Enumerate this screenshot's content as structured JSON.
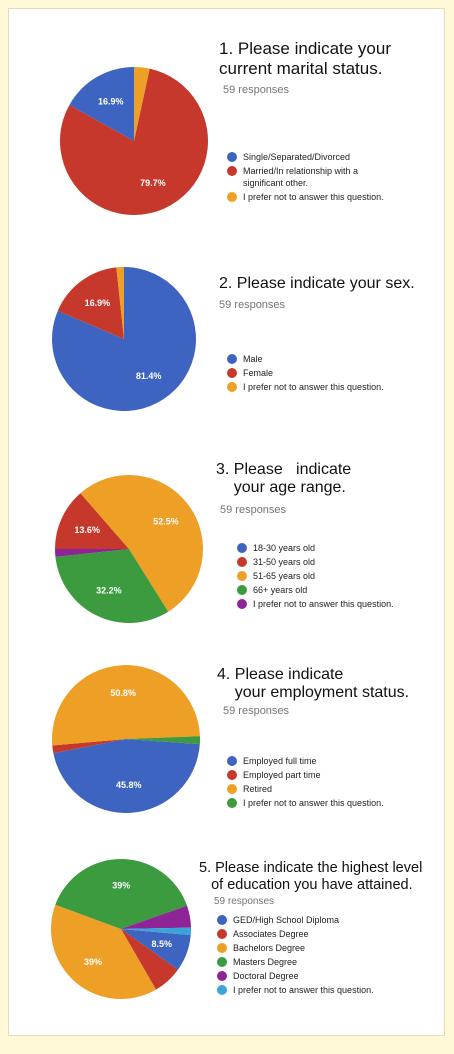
{
  "colors": {
    "blue": "#3e64c1",
    "red": "#c5382b",
    "orange": "#ee9f26",
    "green": "#3c9a3f",
    "purple": "#8e2596",
    "lightblue": "#3ba4d8"
  },
  "chart_data": [
    {
      "type": "pie",
      "title": "1. Please indicate your\ncurrent marital status.",
      "subtitle": "59 responses",
      "categories": [
        "Single/Separated/Divorced",
        "Married/In relationship with a\nsignificant other.",
        "I prefer not to answer this question."
      ],
      "values": [
        16.9,
        79.7,
        3.4
      ],
      "labels": [
        "16.9%",
        "79.7%",
        ""
      ],
      "colors": [
        "#3e64c1",
        "#c5382b",
        "#ee9f26"
      ]
    },
    {
      "type": "pie",
      "title": "2. Please indicate your sex.",
      "subtitle": "59 responses",
      "categories": [
        "Male",
        "Female",
        "I prefer not to answer this question."
      ],
      "values": [
        81.4,
        16.9,
        1.7
      ],
      "labels": [
        "81.4%",
        "16.9%",
        ""
      ],
      "colors": [
        "#3e64c1",
        "#c5382b",
        "#ee9f26"
      ]
    },
    {
      "type": "pie",
      "title": "3. Please   indicate\n    your age range.",
      "subtitle": "59 responses",
      "categories": [
        "18-30 years old",
        "31-50 years old",
        "51-65 years old",
        "66+ years old",
        "I prefer not to answer this question."
      ],
      "values": [
        0,
        13.6,
        52.5,
        32.2,
        1.7
      ],
      "labels": [
        "",
        "13.6%",
        "52.5%",
        "32.2%",
        ""
      ],
      "colors": [
        "#3e64c1",
        "#c5382b",
        "#ee9f26",
        "#3c9a3f",
        "#8e2596"
      ]
    },
    {
      "type": "pie",
      "title": "4. Please indicate\n    your employment status.",
      "subtitle": "59 responses",
      "categories": [
        "Employed full time",
        "Employed part time",
        "Retired",
        "I prefer not to answer this question."
      ],
      "values": [
        45.8,
        1.7,
        50.8,
        1.7
      ],
      "labels": [
        "45.8%",
        "",
        "50.8%",
        ""
      ],
      "colors": [
        "#3e64c1",
        "#c5382b",
        "#ee9f26",
        "#3c9a3f"
      ]
    },
    {
      "type": "pie",
      "title": "5. Please indicate the highest level\n   of education you have attained.",
      "subtitle": "59 responses",
      "categories": [
        "GED/High School Diploma",
        "Associates Degree",
        "Bachelors Degree",
        "Masters Degree",
        "Doctoral Degree",
        "I prefer not to answer this question."
      ],
      "values": [
        8.5,
        6.8,
        39,
        39,
        5.1,
        1.7
      ],
      "labels": [
        "8.5%",
        "",
        "39%",
        "39%",
        "",
        ""
      ],
      "colors": [
        "#3e64c1",
        "#c5382b",
        "#ee9f26",
        "#3c9a3f",
        "#8e2596",
        "#3ba4d8"
      ]
    }
  ]
}
